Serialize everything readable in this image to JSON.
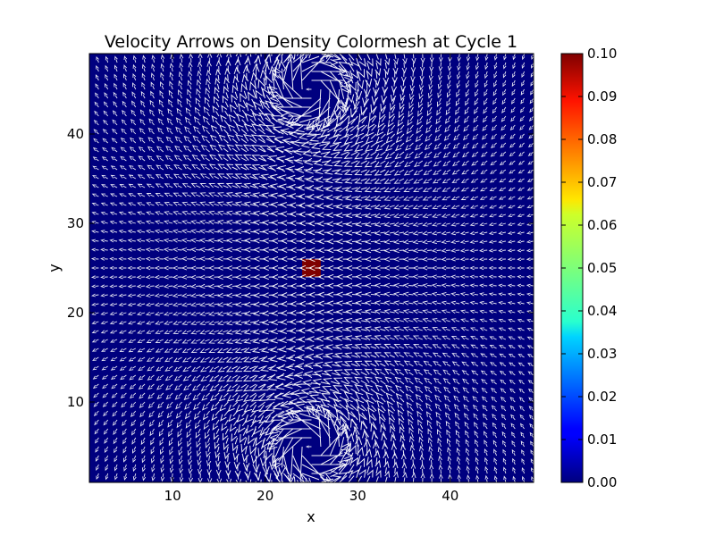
{
  "chart_data": [
    {
      "type": "heatmap",
      "title": "Velocity Arrows on Density Colormesh at Cycle 1",
      "xlabel": "x",
      "ylabel": "y",
      "xlim": [
        1,
        49
      ],
      "ylim": [
        1,
        49
      ],
      "xticks": [
        10,
        20,
        30,
        40
      ],
      "yticks": [
        10,
        20,
        30,
        40
      ],
      "grid": false,
      "colormap": "jet",
      "density_background": 0.0,
      "density_hotspot": {
        "x": [
          24,
          26
        ],
        "y": [
          24,
          26
        ],
        "value": 0.1
      },
      "vectors": {
        "description": "velocity quiver field",
        "grid_spacing": 1,
        "color": "#ffffff",
        "vortices": [
          {
            "x": 25,
            "y": 5,
            "strength": 1.0,
            "sense": "counterclockwise"
          },
          {
            "x": 25,
            "y": 45,
            "strength": 1.0,
            "sense": "clockwise"
          }
        ]
      }
    },
    {
      "type": "colorbar",
      "range": [
        0.0,
        0.1
      ],
      "tick_labels": [
        "0.00",
        "0.01",
        "0.02",
        "0.03",
        "0.04",
        "0.05",
        "0.06",
        "0.07",
        "0.08",
        "0.09",
        "0.10"
      ],
      "colormap": "jet"
    }
  ]
}
